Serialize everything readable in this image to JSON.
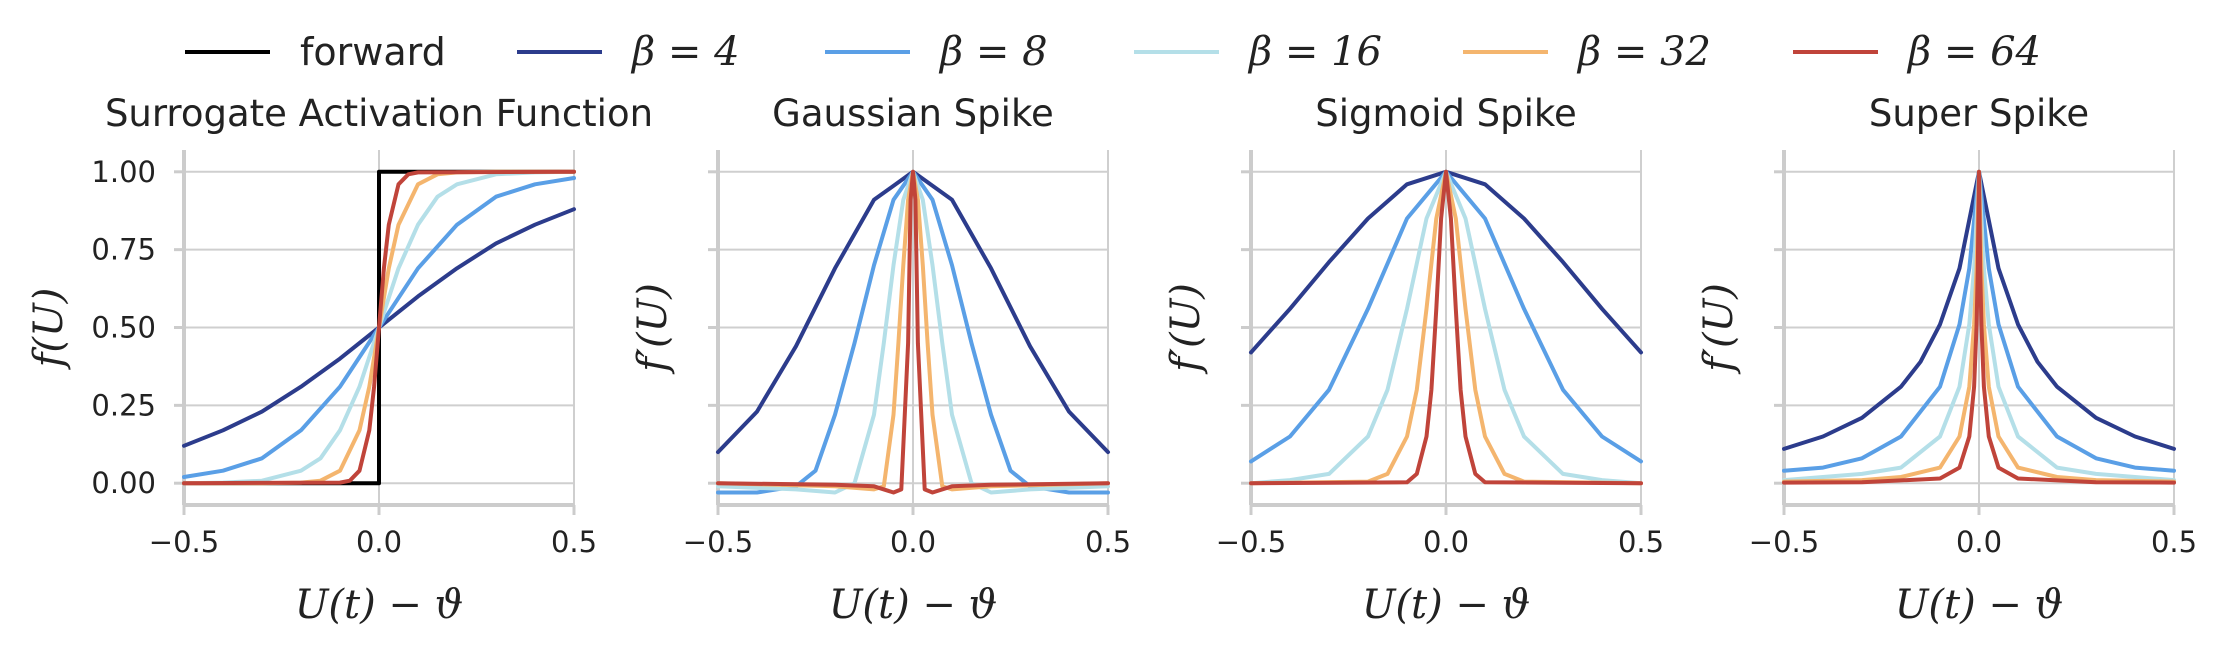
{
  "legend": {
    "entries": [
      {
        "label": "forward",
        "color": "#000000",
        "math": false
      },
      {
        "label": "β = 4",
        "color": "#2c3c8c",
        "math": true
      },
      {
        "label": "β = 8",
        "color": "#5a9fe6",
        "math": true
      },
      {
        "label": "β = 16",
        "color": "#b4dfe8",
        "math": true
      },
      {
        "label": "β = 32",
        "color": "#f4b56e",
        "math": true
      },
      {
        "label": "β = 64",
        "color": "#c0443a",
        "math": true
      }
    ]
  },
  "chart_data": [
    {
      "type": "line",
      "title": "Surrogate Activation Function",
      "xlabel": "U(t) − ϑ",
      "ylabel": "f(U)",
      "xlim": [
        -0.5,
        0.5
      ],
      "ylim": [
        -0.07,
        1.07
      ],
      "xticks": [
        -0.5,
        0.0,
        0.5
      ],
      "xtick_labels": [
        "−0.5",
        "0.0",
        "0.5"
      ],
      "yticks": [
        0.0,
        0.25,
        0.5,
        0.75,
        1.0
      ],
      "ytick_labels": [
        "0.00",
        "0.25",
        "0.50",
        "0.75",
        "1.00"
      ],
      "series": [
        {
          "name": "forward",
          "color": "#000000",
          "x": [
            -0.5,
            0.0,
            0.0,
            0.5
          ],
          "y": [
            0.0,
            0.0,
            1.0,
            1.0
          ]
        },
        {
          "name": "β = 4",
          "color": "#2c3c8c",
          "x": [
            -0.5,
            -0.4,
            -0.3,
            -0.2,
            -0.1,
            0.0,
            0.1,
            0.2,
            0.3,
            0.4,
            0.5
          ],
          "y": [
            0.12,
            0.17,
            0.23,
            0.31,
            0.4,
            0.5,
            0.6,
            0.69,
            0.77,
            0.83,
            0.88
          ]
        },
        {
          "name": "β = 8",
          "color": "#5a9fe6",
          "x": [
            -0.5,
            -0.4,
            -0.3,
            -0.2,
            -0.1,
            0.0,
            0.1,
            0.2,
            0.3,
            0.4,
            0.5
          ],
          "y": [
            0.02,
            0.04,
            0.08,
            0.17,
            0.31,
            0.5,
            0.69,
            0.83,
            0.92,
            0.96,
            0.98
          ]
        },
        {
          "name": "β = 16",
          "color": "#b4dfe8",
          "x": [
            -0.5,
            -0.4,
            -0.3,
            -0.2,
            -0.15,
            -0.1,
            -0.05,
            0.0,
            0.05,
            0.1,
            0.15,
            0.2,
            0.3,
            0.4,
            0.5
          ],
          "y": [
            0.0,
            0.002,
            0.008,
            0.04,
            0.08,
            0.17,
            0.31,
            0.5,
            0.69,
            0.83,
            0.92,
            0.96,
            0.992,
            0.998,
            1.0
          ]
        },
        {
          "name": "β = 32",
          "color": "#f4b56e",
          "x": [
            -0.5,
            -0.3,
            -0.2,
            -0.15,
            -0.1,
            -0.05,
            -0.025,
            0.0,
            0.025,
            0.05,
            0.1,
            0.15,
            0.2,
            0.3,
            0.5
          ],
          "y": [
            0.0,
            0.0,
            0.002,
            0.008,
            0.04,
            0.17,
            0.31,
            0.5,
            0.69,
            0.83,
            0.96,
            0.992,
            0.998,
            1.0,
            1.0
          ]
        },
        {
          "name": "β = 64",
          "color": "#c0443a",
          "x": [
            -0.5,
            -0.1,
            -0.075,
            -0.05,
            -0.025,
            -0.0125,
            0.0,
            0.0125,
            0.025,
            0.05,
            0.075,
            0.1,
            0.5
          ],
          "y": [
            0.0,
            0.002,
            0.008,
            0.04,
            0.17,
            0.31,
            0.5,
            0.69,
            0.83,
            0.96,
            0.992,
            0.998,
            1.0
          ]
        }
      ]
    },
    {
      "type": "line",
      "title": "Gaussian Spike",
      "xlabel": "U(t) − ϑ",
      "ylabel": "f′(U)",
      "xlim": [
        -0.5,
        0.5
      ],
      "ylim": [
        -0.07,
        1.07
      ],
      "xticks": [
        -0.5,
        0.0,
        0.5
      ],
      "xtick_labels": [
        "−0.5",
        "0.0",
        "0.5"
      ],
      "yticks": [
        0.0,
        0.25,
        0.5,
        0.75,
        1.0
      ],
      "series": [
        {
          "name": "β = 4",
          "color": "#2c3c8c",
          "x": [
            -0.5,
            -0.4,
            -0.3,
            -0.2,
            -0.1,
            0.0,
            0.1,
            0.2,
            0.3,
            0.4,
            0.5
          ],
          "y": [
            0.1,
            0.23,
            0.44,
            0.69,
            0.91,
            1.0,
            0.91,
            0.69,
            0.44,
            0.23,
            0.1
          ]
        },
        {
          "name": "β = 8",
          "color": "#5a9fe6",
          "x": [
            -0.5,
            -0.4,
            -0.3,
            -0.25,
            -0.2,
            -0.15,
            -0.1,
            -0.05,
            0.0,
            0.05,
            0.1,
            0.15,
            0.2,
            0.25,
            0.3,
            0.4,
            0.5
          ],
          "y": [
            -0.03,
            -0.03,
            -0.01,
            0.04,
            0.22,
            0.45,
            0.7,
            0.91,
            1.0,
            0.91,
            0.7,
            0.45,
            0.22,
            0.04,
            -0.01,
            -0.03,
            -0.03
          ]
        },
        {
          "name": "β = 16",
          "color": "#b4dfe8",
          "x": [
            -0.5,
            -0.3,
            -0.2,
            -0.15,
            -0.1,
            -0.075,
            -0.05,
            -0.025,
            0.0,
            0.025,
            0.05,
            0.075,
            0.1,
            0.15,
            0.2,
            0.3,
            0.5
          ],
          "y": [
            -0.01,
            -0.02,
            -0.03,
            0.0,
            0.22,
            0.45,
            0.7,
            0.91,
            1.0,
            0.91,
            0.7,
            0.45,
            0.22,
            0.0,
            -0.03,
            -0.02,
            -0.01
          ]
        },
        {
          "name": "β = 32",
          "color": "#f4b56e",
          "x": [
            -0.5,
            -0.2,
            -0.1,
            -0.075,
            -0.05,
            -0.0375,
            -0.025,
            -0.0125,
            0.0,
            0.0125,
            0.025,
            0.0375,
            0.05,
            0.075,
            0.1,
            0.2,
            0.5
          ],
          "y": [
            0.0,
            -0.01,
            -0.02,
            -0.01,
            0.22,
            0.45,
            0.7,
            0.91,
            1.0,
            0.91,
            0.7,
            0.45,
            0.22,
            -0.01,
            -0.02,
            -0.01,
            0.0
          ]
        },
        {
          "name": "β = 64",
          "color": "#c0443a",
          "x": [
            -0.5,
            -0.2,
            -0.1,
            -0.05,
            -0.03,
            -0.0125,
            -0.00625,
            0.0,
            0.00625,
            0.0125,
            0.03,
            0.05,
            0.1,
            0.2,
            0.5
          ],
          "y": [
            0.0,
            -0.005,
            -0.01,
            -0.03,
            -0.02,
            0.45,
            0.91,
            1.0,
            0.91,
            0.45,
            -0.02,
            -0.03,
            -0.01,
            -0.005,
            0.0
          ]
        }
      ]
    },
    {
      "type": "line",
      "title": "Sigmoid Spike",
      "xlabel": "U(t) − ϑ",
      "ylabel": "f′(U)",
      "xlim": [
        -0.5,
        0.5
      ],
      "ylim": [
        -0.07,
        1.07
      ],
      "xticks": [
        -0.5,
        0.0,
        0.5
      ],
      "xtick_labels": [
        "−0.5",
        "0.0",
        "0.5"
      ],
      "yticks": [
        0.0,
        0.25,
        0.5,
        0.75,
        1.0
      ],
      "series": [
        {
          "name": "β = 4",
          "color": "#2c3c8c",
          "x": [
            -0.5,
            -0.4,
            -0.3,
            -0.2,
            -0.1,
            0.0,
            0.1,
            0.2,
            0.3,
            0.4,
            0.5
          ],
          "y": [
            0.42,
            0.56,
            0.71,
            0.85,
            0.96,
            1.0,
            0.96,
            0.85,
            0.71,
            0.56,
            0.42
          ]
        },
        {
          "name": "β = 8",
          "color": "#5a9fe6",
          "x": [
            -0.5,
            -0.4,
            -0.3,
            -0.2,
            -0.1,
            0.0,
            0.1,
            0.2,
            0.3,
            0.4,
            0.5
          ],
          "y": [
            0.07,
            0.15,
            0.3,
            0.56,
            0.85,
            1.0,
            0.85,
            0.56,
            0.3,
            0.15,
            0.07
          ]
        },
        {
          "name": "β = 16",
          "color": "#b4dfe8",
          "x": [
            -0.5,
            -0.4,
            -0.3,
            -0.2,
            -0.15,
            -0.1,
            -0.05,
            0.0,
            0.05,
            0.1,
            0.15,
            0.2,
            0.3,
            0.4,
            0.5
          ],
          "y": [
            0.0,
            0.01,
            0.03,
            0.15,
            0.3,
            0.56,
            0.85,
            1.0,
            0.85,
            0.56,
            0.3,
            0.15,
            0.03,
            0.01,
            0.0
          ]
        },
        {
          "name": "β = 32",
          "color": "#f4b56e",
          "x": [
            -0.5,
            -0.2,
            -0.15,
            -0.1,
            -0.075,
            -0.05,
            -0.025,
            0.0,
            0.025,
            0.05,
            0.075,
            0.1,
            0.15,
            0.2,
            0.5
          ],
          "y": [
            0.0,
            0.005,
            0.03,
            0.15,
            0.3,
            0.56,
            0.85,
            1.0,
            0.85,
            0.56,
            0.3,
            0.15,
            0.03,
            0.005,
            0.0
          ]
        },
        {
          "name": "β = 64",
          "color": "#c0443a",
          "x": [
            -0.5,
            -0.1,
            -0.075,
            -0.05,
            -0.0375,
            -0.025,
            -0.0125,
            0.0,
            0.0125,
            0.025,
            0.0375,
            0.05,
            0.075,
            0.1,
            0.5
          ],
          "y": [
            0.0,
            0.003,
            0.03,
            0.15,
            0.3,
            0.56,
            0.85,
            1.0,
            0.85,
            0.56,
            0.3,
            0.15,
            0.03,
            0.003,
            0.0
          ]
        }
      ]
    },
    {
      "type": "line",
      "title": "Super Spike",
      "xlabel": "U(t) − ϑ",
      "ylabel": "f′(U)",
      "xlim": [
        -0.5,
        0.5
      ],
      "ylim": [
        -0.07,
        1.07
      ],
      "xticks": [
        -0.5,
        0.0,
        0.5
      ],
      "xtick_labels": [
        "−0.5",
        "0.0",
        "0.5"
      ],
      "yticks": [
        0.0,
        0.25,
        0.5,
        0.75,
        1.0
      ],
      "series": [
        {
          "name": "β = 4",
          "color": "#2c3c8c",
          "x": [
            -0.5,
            -0.4,
            -0.3,
            -0.2,
            -0.15,
            -0.1,
            -0.05,
            0.0,
            0.05,
            0.1,
            0.15,
            0.2,
            0.3,
            0.4,
            0.5
          ],
          "y": [
            0.11,
            0.15,
            0.21,
            0.31,
            0.39,
            0.51,
            0.69,
            1.0,
            0.69,
            0.51,
            0.39,
            0.31,
            0.21,
            0.15,
            0.11
          ]
        },
        {
          "name": "β = 8",
          "color": "#5a9fe6",
          "x": [
            -0.5,
            -0.4,
            -0.3,
            -0.2,
            -0.1,
            -0.05,
            -0.025,
            0.0,
            0.025,
            0.05,
            0.1,
            0.2,
            0.3,
            0.4,
            0.5
          ],
          "y": [
            0.04,
            0.05,
            0.08,
            0.15,
            0.31,
            0.51,
            0.69,
            1.0,
            0.69,
            0.51,
            0.31,
            0.15,
            0.08,
            0.05,
            0.04
          ]
        },
        {
          "name": "β = 16",
          "color": "#b4dfe8",
          "x": [
            -0.5,
            -0.4,
            -0.3,
            -0.2,
            -0.1,
            -0.05,
            -0.025,
            -0.0125,
            0.0,
            0.0125,
            0.025,
            0.05,
            0.1,
            0.2,
            0.3,
            0.4,
            0.5
          ],
          "y": [
            0.01,
            0.02,
            0.03,
            0.05,
            0.15,
            0.31,
            0.51,
            0.69,
            1.0,
            0.69,
            0.51,
            0.31,
            0.15,
            0.05,
            0.03,
            0.02,
            0.01
          ]
        },
        {
          "name": "β = 32",
          "color": "#f4b56e",
          "x": [
            -0.5,
            -0.3,
            -0.2,
            -0.1,
            -0.05,
            -0.025,
            -0.0125,
            -0.00625,
            0.0,
            0.00625,
            0.0125,
            0.025,
            0.05,
            0.1,
            0.2,
            0.3,
            0.5
          ],
          "y": [
            0.005,
            0.01,
            0.02,
            0.05,
            0.15,
            0.31,
            0.51,
            0.69,
            1.0,
            0.69,
            0.51,
            0.31,
            0.15,
            0.05,
            0.02,
            0.01,
            0.005
          ]
        },
        {
          "name": "β = 64",
          "color": "#c0443a",
          "x": [
            -0.5,
            -0.3,
            -0.1,
            -0.05,
            -0.025,
            -0.0125,
            -0.00625,
            -0.003,
            0.0,
            0.003,
            0.00625,
            0.0125,
            0.025,
            0.05,
            0.1,
            0.3,
            0.5
          ],
          "y": [
            0.002,
            0.003,
            0.015,
            0.05,
            0.15,
            0.31,
            0.51,
            0.69,
            1.0,
            0.69,
            0.51,
            0.31,
            0.15,
            0.05,
            0.015,
            0.003,
            0.002
          ]
        }
      ]
    }
  ]
}
